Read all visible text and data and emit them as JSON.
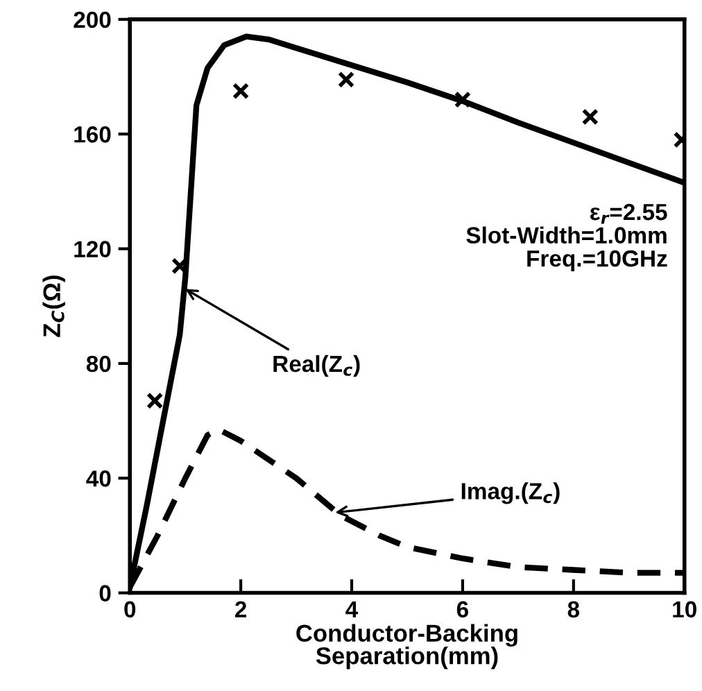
{
  "chart_data": {
    "type": "line",
    "xlabel": "Conductor-Backing\nSeparation(mm)",
    "ylabel": "Z$_{C}$(Ω)",
    "xlim": [
      0,
      10
    ],
    "ylim": [
      0,
      200
    ],
    "xticks": [
      0,
      2,
      4,
      6,
      8,
      10
    ],
    "yticks": [
      0,
      40,
      80,
      120,
      160,
      200
    ],
    "grid": false,
    "legend": false,
    "series": [
      {
        "color": "#000000",
        "line_style": "solid",
        "marker": "none",
        "x": [
          0,
          0.3,
          0.6,
          0.9,
          1.0,
          1.1,
          1.2,
          1.4,
          1.7,
          2.1,
          2.5,
          3,
          4,
          5,
          6,
          7,
          8,
          9,
          10
        ],
        "values": [
          2,
          30,
          60,
          90,
          110,
          140,
          170,
          183,
          191,
          194,
          193,
          190,
          184,
          178,
          171.5,
          164,
          157,
          150,
          143
        ]
      },
      {
        "color": "#000000",
        "line_style": "dashed",
        "marker": "none",
        "x": [
          0,
          0.5,
          1.0,
          1.4,
          1.6,
          2,
          3,
          3.8,
          4.5,
          5,
          6,
          7,
          8,
          9,
          10
        ],
        "values": [
          2,
          20,
          40,
          55,
          57,
          53,
          40,
          27,
          20,
          16,
          12,
          9,
          8,
          7,
          7
        ]
      },
      {
        "type": "scatter",
        "color": "#000000",
        "marker": "cross",
        "x": [
          0.45,
          0.9,
          2.0,
          3.9,
          6.0,
          8.3,
          9.95
        ],
        "values": [
          67,
          114,
          175,
          179,
          172,
          166,
          158
        ]
      }
    ],
    "annotations": [
      {
        "text": "Real(Z$_{c}$)",
        "x": 1.0,
        "y": 106
      },
      {
        "text": "Imag.(Z$_{c}$)",
        "x": 3.7,
        "y": 28
      },
      "ε$_{r}$=2.55\nSlot-Width=1.0mm\nFreq.=10GHz"
    ]
  }
}
